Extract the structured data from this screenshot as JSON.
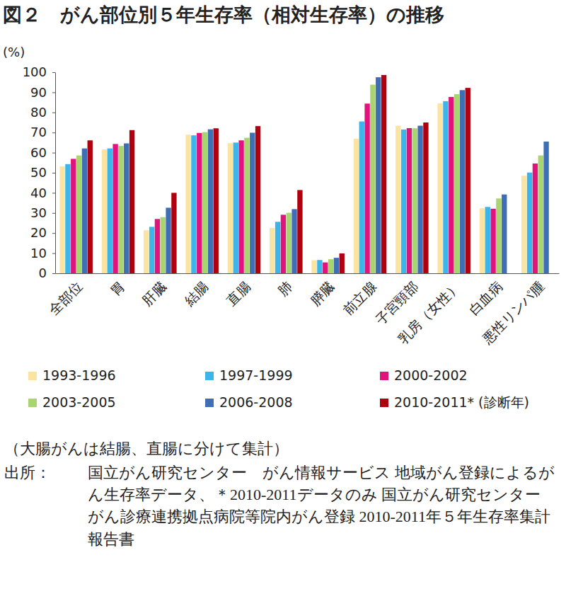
{
  "chart_data": {
    "type": "bar",
    "title": "図２　がん部位別５年生存率（相対生存率）の推移",
    "ylabel": "(%)",
    "categories": [
      "全部位",
      "胃",
      "肝臓",
      "結腸",
      "直腸",
      "肺",
      "膵臓",
      "前立腺",
      "子宮頸部",
      "乳房（女性）",
      "白血病",
      "悪性リンパ腫"
    ],
    "series": [
      {
        "name": "1993-1996",
        "color": "#fbe3a1",
        "values": [
          53.2,
          61.6,
          21.4,
          68.9,
          64.7,
          22.5,
          6.5,
          66.9,
          73.4,
          84.5,
          32.3,
          48.5
        ]
      },
      {
        "name": "1997-1999",
        "color": "#3cb6ea",
        "values": [
          54.3,
          62.1,
          23.1,
          68.6,
          65.0,
          25.6,
          6.6,
          75.5,
          71.5,
          85.6,
          33.0,
          50.1
        ]
      },
      {
        "name": "2000-2002",
        "color": "#e0147c",
        "values": [
          56.9,
          64.3,
          27.0,
          69.8,
          66.1,
          29.1,
          5.4,
          84.4,
          72.2,
          87.7,
          32.1,
          54.6
        ]
      },
      {
        "name": "2003-2005",
        "color": "#a8d56f",
        "values": [
          58.6,
          63.3,
          27.9,
          70.2,
          67.4,
          30.1,
          7.0,
          93.8,
          72.1,
          89.1,
          37.2,
          58.6
        ]
      },
      {
        "name": "2006-2008",
        "color": "#3e6fb5",
        "values": [
          62.1,
          64.6,
          32.6,
          71.6,
          69.9,
          31.9,
          7.7,
          97.5,
          73.4,
          91.1,
          39.2,
          65.5
        ]
      },
      {
        "name": "2010-2011* (診断年)",
        "color": "#b0000f",
        "values": [
          66.1,
          71.2,
          40.0,
          72.1,
          73.2,
          41.4,
          9.9,
          98.6,
          75.0,
          92.2,
          null,
          null
        ]
      }
    ],
    "ylim": [
      0,
      100
    ],
    "yticks": [
      0,
      10,
      20,
      30,
      40,
      50,
      60,
      70,
      80,
      90,
      100
    ],
    "grid": false,
    "legend": "bottom",
    "note": "（大腸がんは結腸、直腸に分けて集計）",
    "source_label": "出所：",
    "source": "国立がん研究センター　がん情報サービス 地域がん登録によるがん生存率データ、＊2010-2011データのみ 国立がん研究センター　がん診療連携拠点病院等院内がん登録 2010-2011年５年生存率集計 報告書"
  }
}
